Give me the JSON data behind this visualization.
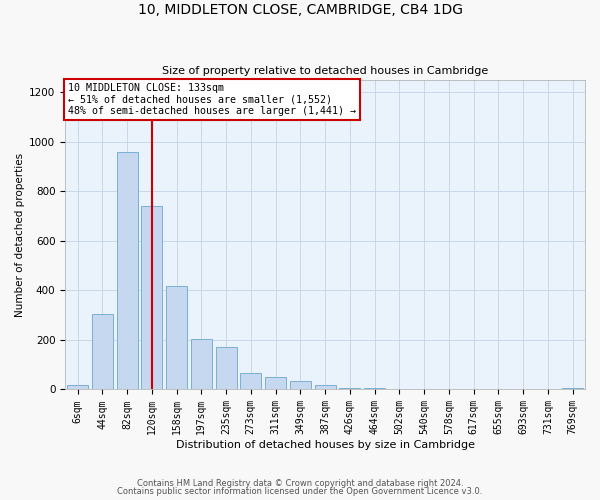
{
  "title1": "10, MIDDLETON CLOSE, CAMBRIDGE, CB4 1DG",
  "title2": "Size of property relative to detached houses in Cambridge",
  "xlabel": "Distribution of detached houses by size in Cambridge",
  "ylabel": "Number of detached properties",
  "bin_labels": [
    "6sqm",
    "44sqm",
    "82sqm",
    "120sqm",
    "158sqm",
    "197sqm",
    "235sqm",
    "273sqm",
    "311sqm",
    "349sqm",
    "387sqm",
    "426sqm",
    "464sqm",
    "502sqm",
    "540sqm",
    "578sqm",
    "617sqm",
    "655sqm",
    "693sqm",
    "731sqm",
    "769sqm"
  ],
  "bar_heights": [
    20,
    305,
    960,
    740,
    420,
    205,
    170,
    65,
    50,
    35,
    20,
    5,
    5,
    0,
    0,
    0,
    0,
    0,
    0,
    0,
    5
  ],
  "bar_color": "#c5d8f0",
  "bar_edge_color": "#7bafd4",
  "property_line_x": 3.0,
  "annotation_text_line1": "10 MIDDLETON CLOSE: 133sqm",
  "annotation_text_line2": "← 51% of detached houses are smaller (1,552)",
  "annotation_text_line3": "48% of semi-detached houses are larger (1,441) →",
  "annotation_box_color": "#ffffff",
  "annotation_box_edge": "#cc0000",
  "property_line_color": "#cc0000",
  "ylim": [
    0,
    1250
  ],
  "yticks": [
    0,
    200,
    400,
    600,
    800,
    1000,
    1200
  ],
  "grid_color": "#c8d8e8",
  "bg_color": "#eaf2fb",
  "fig_bg_color": "#f8f8f8",
  "footer1": "Contains HM Land Registry data © Crown copyright and database right 2024.",
  "footer2": "Contains public sector information licensed under the Open Government Licence v3.0."
}
